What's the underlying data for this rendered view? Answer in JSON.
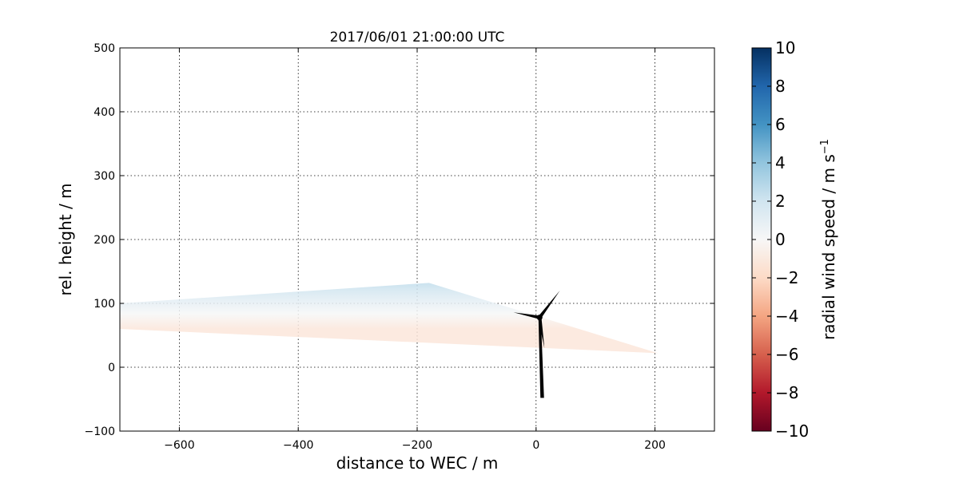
{
  "chart_data": {
    "type": "heatmap",
    "title": "2017/06/01 21:00:00 UTC",
    "xlabel": "distance to WEC / m",
    "ylabel": "rel. height / m",
    "xlim": [
      -700,
      300
    ],
    "ylim": [
      -100,
      500
    ],
    "xticks": [
      -600,
      -400,
      -200,
      0,
      200
    ],
    "yticks": [
      -100,
      0,
      100,
      200,
      300,
      400,
      500
    ],
    "grid": true,
    "colorbar": {
      "label": "radial wind speed / m s",
      "label_superscript": "−1",
      "range": [
        -10,
        10
      ],
      "ticks": [
        -10,
        -8,
        -6,
        -4,
        -2,
        0,
        2,
        4,
        6,
        8,
        10
      ],
      "colormap": [
        "#67001f",
        "#b2182b",
        "#d6604d",
        "#f4a582",
        "#fddbc7",
        "#f7f7f7",
        "#d1e5f0",
        "#92c5de",
        "#4393c3",
        "#2166ac",
        "#053061"
      ],
      "placement": "right"
    },
    "scan": {
      "apex": [
        -180,
        132
      ],
      "upper_left": [
        -700,
        100
      ],
      "lower_left": [
        -700,
        60
      ],
      "right_tip": [
        205,
        22
      ],
      "top_value": 2.5,
      "bottom_value": -1.2
    },
    "turbine": {
      "hub": [
        6,
        78
      ],
      "base": [
        10,
        -48
      ],
      "blade_tips": [
        [
          40,
          120
        ],
        [
          -38,
          86
        ],
        [
          14,
          30
        ]
      ]
    }
  }
}
